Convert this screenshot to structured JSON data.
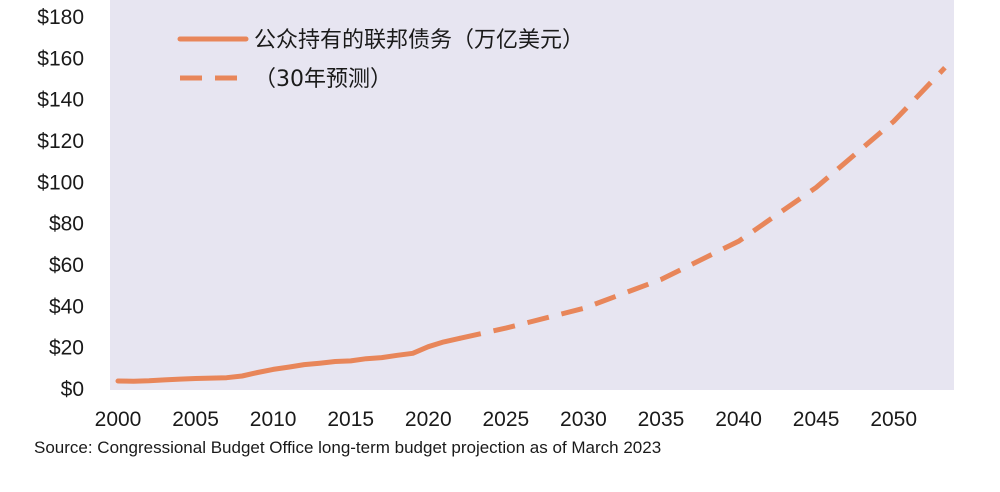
{
  "chart_data": {
    "type": "line",
    "x_ticks": [
      "2000",
      "2005",
      "2010",
      "2015",
      "2020",
      "2025",
      "2030",
      "2035",
      "2040",
      "2045",
      "2050"
    ],
    "y_ticks": [
      "$0",
      "$20",
      "$40",
      "$60",
      "$80",
      "$100",
      "$120",
      "$140",
      "$160",
      "$180"
    ],
    "xlim": [
      2000,
      2053.5
    ],
    "ylim": [
      0,
      180
    ],
    "legend_placement": "top-left",
    "grid": false,
    "colors": {
      "line": "#e8865a",
      "plot_bg": "#e7e5f1"
    },
    "series": [
      {
        "name": "公众持有的联邦债务（万亿美元）",
        "style": "solid",
        "x": [
          2000,
          2001,
          2002,
          2003,
          2004,
          2005,
          2006,
          2007,
          2008,
          2009,
          2010,
          2011,
          2012,
          2013,
          2014,
          2015,
          2016,
          2017,
          2018,
          2019,
          2020,
          2021,
          2022
        ],
        "y": [
          3.4,
          3.3,
          3.5,
          3.9,
          4.3,
          4.6,
          4.8,
          5.0,
          5.8,
          7.5,
          9.0,
          10.1,
          11.3,
          12.0,
          12.8,
          13.1,
          14.2,
          14.7,
          15.8,
          16.8,
          20.0,
          22.3,
          24.0
        ]
      },
      {
        "name": "（30年预测）",
        "style": "dashed",
        "x": [
          2022,
          2025,
          2030,
          2035,
          2040,
          2045,
          2050,
          2053.3
        ],
        "y": [
          24.0,
          29,
          38.5,
          52.5,
          71,
          97,
          129,
          155
        ]
      }
    ]
  },
  "source": "Source: Congressional Budget Office long-term budget projection as of March 2023"
}
